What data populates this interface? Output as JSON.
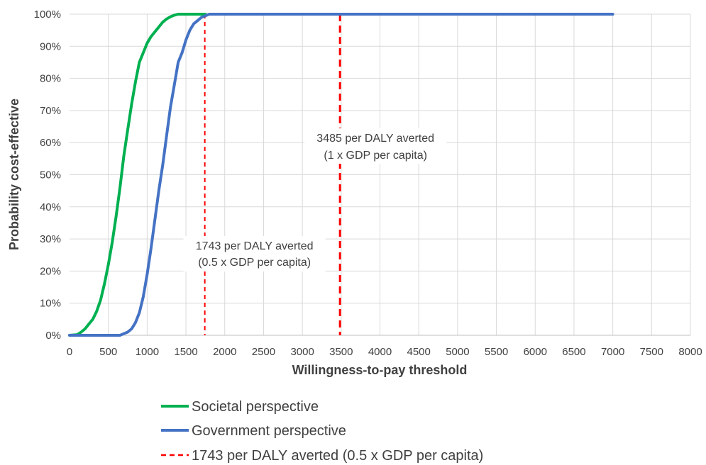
{
  "chart_data": {
    "type": "line",
    "title": "",
    "xlabel": "Willingness-to-pay threshold",
    "ylabel": "Probability cost-effective",
    "xlim": [
      0,
      8000
    ],
    "ylim": [
      0,
      1
    ],
    "x_ticks": [
      0,
      500,
      1000,
      1500,
      2000,
      2500,
      3000,
      3500,
      4000,
      4500,
      5000,
      5500,
      6000,
      6500,
      7000,
      7500,
      8000
    ],
    "y_ticks": [
      0,
      0.1,
      0.2,
      0.3,
      0.4,
      0.5,
      0.6,
      0.7,
      0.8,
      0.9,
      1.0
    ],
    "y_tick_labels": [
      "0%",
      "10%",
      "20%",
      "30%",
      "40%",
      "50%",
      "60%",
      "70%",
      "80%",
      "90%",
      "100%"
    ],
    "grid": true,
    "legend_position": "bottom",
    "series": [
      {
        "name": "Societal perspective",
        "color": "#00b050",
        "points": [
          [
            0,
            0
          ],
          [
            100,
            0.002
          ],
          [
            150,
            0.01
          ],
          [
            200,
            0.02
          ],
          [
            250,
            0.035
          ],
          [
            300,
            0.05
          ],
          [
            350,
            0.075
          ],
          [
            400,
            0.11
          ],
          [
            450,
            0.16
          ],
          [
            500,
            0.22
          ],
          [
            550,
            0.29
          ],
          [
            600,
            0.37
          ],
          [
            650,
            0.46
          ],
          [
            700,
            0.56
          ],
          [
            750,
            0.64
          ],
          [
            800,
            0.72
          ],
          [
            850,
            0.79
          ],
          [
            900,
            0.85
          ],
          [
            950,
            0.88
          ],
          [
            1000,
            0.91
          ],
          [
            1050,
            0.93
          ],
          [
            1100,
            0.945
          ],
          [
            1150,
            0.96
          ],
          [
            1200,
            0.975
          ],
          [
            1250,
            0.985
          ],
          [
            1300,
            0.992
          ],
          [
            1350,
            0.997
          ],
          [
            1400,
            1.0
          ],
          [
            1750,
            1.0
          ]
        ]
      },
      {
        "name": "Government perspective",
        "color": "#4472c4",
        "points": [
          [
            0,
            0
          ],
          [
            650,
            0
          ],
          [
            700,
            0.005
          ],
          [
            750,
            0.01
          ],
          [
            800,
            0.02
          ],
          [
            850,
            0.04
          ],
          [
            900,
            0.07
          ],
          [
            950,
            0.12
          ],
          [
            1000,
            0.19
          ],
          [
            1050,
            0.27
          ],
          [
            1100,
            0.36
          ],
          [
            1150,
            0.45
          ],
          [
            1200,
            0.53
          ],
          [
            1250,
            0.62
          ],
          [
            1300,
            0.71
          ],
          [
            1350,
            0.78
          ],
          [
            1400,
            0.85
          ],
          [
            1450,
            0.88
          ],
          [
            1500,
            0.92
          ],
          [
            1550,
            0.95
          ],
          [
            1600,
            0.97
          ],
          [
            1650,
            0.98
          ],
          [
            1700,
            0.99
          ],
          [
            1800,
            1.0
          ],
          [
            7000,
            1.0
          ]
        ]
      }
    ],
    "reference_lines": [
      {
        "name": "1743 per DALY averted (0.5 x GDP per capita)",
        "x": 1743,
        "color": "#ff0000",
        "style": "dashed-thin",
        "label_lines": [
          "1743 per DALY averted",
          "(0.5 x GDP per capita)"
        ]
      },
      {
        "name": "",
        "x": 3485,
        "color": "#ff0000",
        "style": "dashed-thick",
        "label_lines": [
          "3485 per DALY averted",
          "(1 x GDP per capita)"
        ]
      }
    ],
    "legend": [
      {
        "label": "Societal perspective",
        "color": "#00b050",
        "style": "solid"
      },
      {
        "label": "Government perspective",
        "color": "#4472c4",
        "style": "solid"
      },
      {
        "label": "1743 per DALY averted (0.5 x GDP per capita)",
        "color": "#ff0000",
        "style": "dashed"
      }
    ]
  }
}
